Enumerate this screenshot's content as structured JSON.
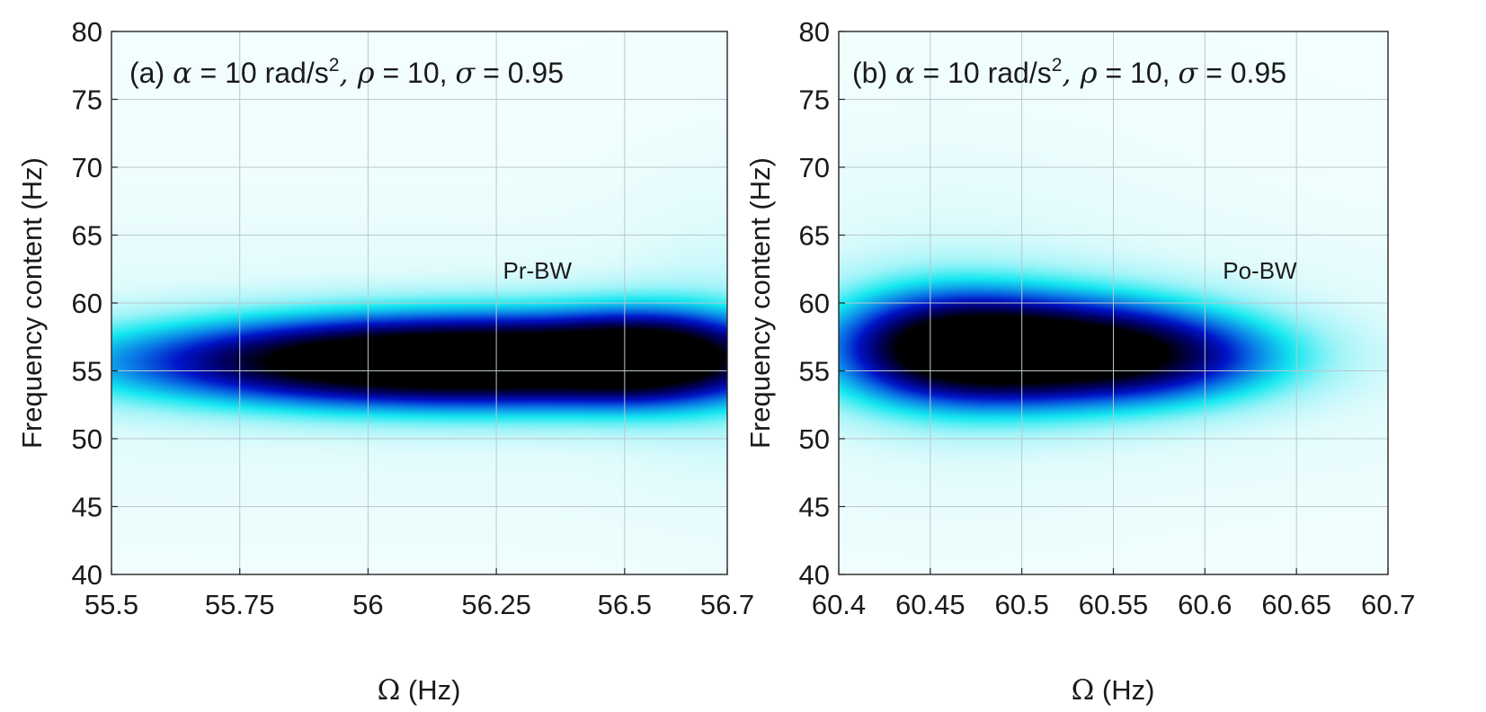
{
  "chart_data": [
    {
      "type": "heatmap",
      "panel_label": "(a)",
      "title_parts": {
        "label": "(a)",
        "alpha_sym": "α",
        "alpha_val": " = 10 rad/s",
        "sup": "2",
        "rho_sym": ", ρ",
        "rho_val": " = 10, ",
        "sigma_sym": "σ",
        "sigma_val": " = 0.95"
      },
      "xlabel": {
        "sym": "Ω",
        "unit": " (Hz)"
      },
      "ylabel": "Frequency content (Hz)",
      "xlim": [
        55.5,
        56.7
      ],
      "ylim": [
        40,
        80
      ],
      "xticks": [
        55.5,
        55.75,
        56,
        56.25,
        56.5,
        56.7
      ],
      "xtick_labels": [
        "55.5",
        "55.75",
        "56",
        "56.25",
        "56.5",
        "56.7"
      ],
      "yticks": [
        40,
        45,
        50,
        55,
        60,
        65,
        70,
        75,
        80
      ],
      "ytick_labels": [
        "40",
        "45",
        "50",
        "55",
        "60",
        "65",
        "70",
        "75",
        "80"
      ],
      "grid": true,
      "annotation": {
        "text": "Pr-BW",
        "x": 56.33,
        "y": 61.8
      },
      "blobs": [
        {
          "cx": 56.3,
          "cy": 55.8,
          "sx": 0.38,
          "sy": 2.3,
          "amp": 1.0
        },
        {
          "cx": 55.95,
          "cy": 55.6,
          "sx": 0.35,
          "sy": 2.0,
          "amp": 0.55
        },
        {
          "cx": 56.55,
          "cy": 56.2,
          "sx": 0.12,
          "sy": 2.2,
          "amp": 0.45
        }
      ],
      "haze": [
        {
          "cx": 56.1,
          "cy": 55.5,
          "sx": 2.5,
          "sy": 8.0,
          "amp": 0.07
        },
        {
          "cx": 56.7,
          "cy": 58.0,
          "sx": 0.15,
          "sy": 9.0,
          "amp": 0.05
        }
      ]
    },
    {
      "type": "heatmap",
      "panel_label": "(b)",
      "title_parts": {
        "label": "(b)",
        "alpha_sym": "α",
        "alpha_val": " = 10 rad/s",
        "sup": "2",
        "rho_sym": ", ρ",
        "rho_val": " = 10, ",
        "sigma_sym": "σ",
        "sigma_val": " = 0.95"
      },
      "xlabel": {
        "sym": "Ω",
        "unit": " (Hz)"
      },
      "ylabel": "Frequency content (Hz)",
      "xlim": [
        60.4,
        60.7
      ],
      "ylim": [
        40,
        80
      ],
      "xticks": [
        60.4,
        60.45,
        60.5,
        60.55,
        60.6,
        60.65,
        60.7
      ],
      "xtick_labels": [
        "60.4",
        "60.45",
        "60.5",
        "60.55",
        "60.6",
        "60.65",
        "60.7"
      ],
      "yticks": [
        40,
        45,
        50,
        55,
        60,
        65,
        70,
        75,
        80
      ],
      "ytick_labels": [
        "40",
        "45",
        "50",
        "55",
        "60",
        "65",
        "70",
        "75",
        "80"
      ],
      "grid": true,
      "annotation": {
        "text": "Po-BW",
        "x": 60.63,
        "y": 61.8
      },
      "blobs": [
        {
          "cx": 60.51,
          "cy": 56.5,
          "sx": 0.06,
          "sy": 2.6,
          "amp": 1.0
        },
        {
          "cx": 60.455,
          "cy": 56.8,
          "sx": 0.04,
          "sy": 2.8,
          "amp": 0.55
        },
        {
          "cx": 60.58,
          "cy": 56.0,
          "sx": 0.05,
          "sy": 2.2,
          "amp": 0.4
        }
      ],
      "haze": [
        {
          "cx": 60.45,
          "cy": 58.0,
          "sx": 0.1,
          "sy": 9.0,
          "amp": 0.09
        },
        {
          "cx": 60.65,
          "cy": 56.0,
          "sx": 0.12,
          "sy": 6.5,
          "amp": 0.06
        }
      ]
    }
  ]
}
